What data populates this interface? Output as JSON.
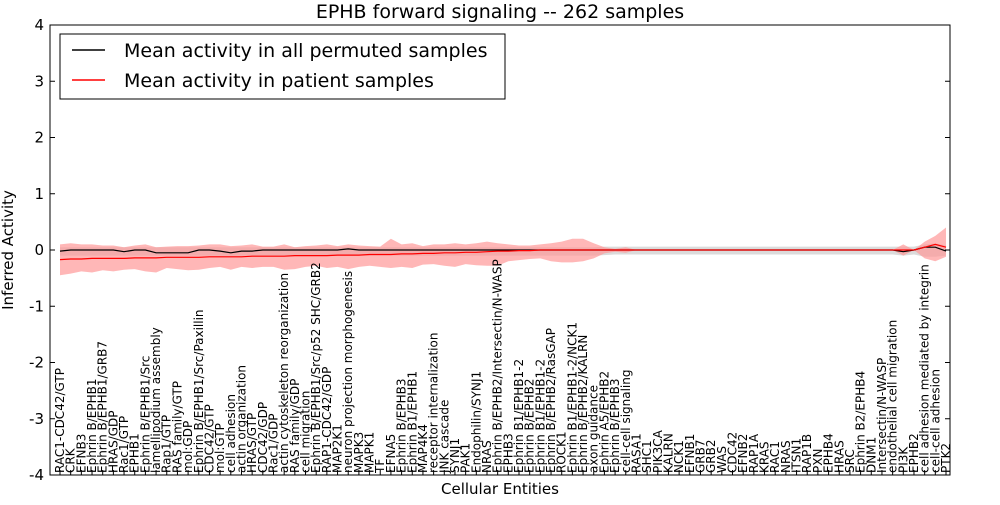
{
  "chart_data": {
    "type": "line",
    "title": "EPHB forward signaling -- 262 samples",
    "xlabel": "Cellular Entities",
    "ylabel": "Inferred Activity",
    "ylim": [
      -4,
      4
    ],
    "yticks": [
      4,
      3,
      2,
      1,
      0,
      -1,
      -2,
      -3,
      -4
    ],
    "legend_position": "top-left",
    "colors": {
      "permuted_line": "#000000",
      "patient_line": "#ff0000",
      "patient_band": "#ff9999",
      "permuted_band": "#cccccc"
    },
    "categories": [
      "RAC1-CDC42/GTP",
      "CRK",
      "EFNB3",
      "Ephrin B/EPHB1",
      "Ephrin B/EPHB1/GRB7",
      "HRAS/GDP",
      "Rac1/GTP",
      "EPHB1",
      "Ephrin B/EPHB1/Src",
      "lamellipodium assembly",
      "Rap1/GTP",
      "RAS family/GTP",
      "mol:GDP",
      "Ephrin B/EPHB1/Src/Paxillin",
      "CDC42/GTP",
      "mol:GTP",
      "cell adhesion",
      "actin organization",
      "HRAS/GTP",
      "CDC42/GDP",
      "Rac1/GDP",
      "actin cytoskeleton reorganization",
      "RAS family/GDP",
      "cell migration",
      "Ephrin B/EPHB1/Src/p52 SHC/GRB2",
      "RAP1-CDC42/GDP",
      "MAP2K1",
      "neuron projection morphogenesis",
      "MAPK3",
      "MAPK1",
      "TF",
      "EFNA5",
      "Ephrin B/EPHB3",
      "Ephrin B1/EPHB1",
      "MAP4K4",
      "receptor internalization",
      "JNK cascade",
      "SYNJ1",
      "PAK1",
      "Endophilin/SYNJ1",
      "NRAS",
      "Ephrin B/EPHB2/Intersectin/N-WASP",
      "EPHB3",
      "Ephrin B1/EPHB1-2",
      "Ephrin B/EPHB2",
      "Ephrin B1/EPHB1-2",
      "Ephrin B/EPHB2/RasGAP",
      "ROCK1",
      "Ephrin B1/EPHB1-2/NCK1",
      "Ephrin B/EPHB2/KALRN",
      "axon guidance",
      "Ephrin A5/EPHB2",
      "Ephrin B/EPHB3",
      "cell-cell signaling",
      "RASA1",
      "SHC1",
      "PIK3CA",
      "KALRN",
      "NCK1",
      "EFNB1",
      "GRB7",
      "GRB2",
      "WAS",
      "CDC42",
      "EFNB2",
      "RAP1A",
      "KRAS",
      "RAC1",
      "NRAS",
      "ITSN1",
      "RAP1B",
      "PXN",
      "EPHB4",
      "HRAS",
      "SRC",
      "Ephrin B2/EPHB4",
      "DNM1",
      "Intersectin/N-WASP",
      "endothelial cell migration",
      "PI3K",
      "EPHB2",
      "cell adhesion mediated by integrin",
      "cell-cell adhesion",
      "PTK2"
    ],
    "series": [
      {
        "name": "Mean activity in all permuted samples",
        "values": [
          -0.02,
          0.0,
          0.0,
          0.0,
          0.0,
          0.0,
          -0.03,
          0.0,
          0.0,
          -0.05,
          -0.05,
          -0.05,
          -0.05,
          0.0,
          0.0,
          -0.02,
          -0.05,
          -0.02,
          -0.02,
          0.0,
          0.0,
          0.0,
          0.0,
          0.0,
          0.0,
          0.0,
          0.0,
          0.02,
          0.0,
          0.0,
          0.0,
          0.0,
          0.0,
          0.0,
          0.0,
          0.0,
          0.0,
          0.0,
          0.0,
          0.0,
          0.0,
          0.0,
          0.0,
          0.0,
          0.0,
          0.0,
          0.0,
          0.0,
          0.0,
          0.0,
          0.0,
          0.0,
          0.0,
          0.0,
          0.0,
          0.0,
          0.0,
          0.0,
          0.0,
          0.0,
          0.0,
          0.0,
          0.0,
          0.0,
          0.0,
          0.0,
          0.0,
          0.0,
          0.0,
          0.0,
          0.0,
          0.0,
          0.0,
          0.0,
          0.0,
          0.0,
          0.0,
          0.0,
          0.0,
          -0.03,
          0.0,
          0.05,
          0.05,
          -0.02
        ]
      },
      {
        "name": "Mean activity in patient samples",
        "values": [
          -0.17,
          -0.16,
          -0.16,
          -0.15,
          -0.15,
          -0.15,
          -0.15,
          -0.14,
          -0.14,
          -0.14,
          -0.13,
          -0.13,
          -0.13,
          -0.13,
          -0.12,
          -0.12,
          -0.12,
          -0.12,
          -0.11,
          -0.11,
          -0.11,
          -0.11,
          -0.1,
          -0.1,
          -0.1,
          -0.1,
          -0.09,
          -0.09,
          -0.09,
          -0.08,
          -0.08,
          -0.08,
          -0.07,
          -0.07,
          -0.06,
          -0.06,
          -0.05,
          -0.05,
          -0.04,
          -0.04,
          -0.03,
          -0.02,
          -0.02,
          -0.01,
          -0.01,
          0.0,
          0.0,
          0.0,
          0.0,
          0.0,
          0.0,
          0.0,
          0.0,
          0.0,
          0.0,
          0.0,
          0.0,
          0.0,
          0.0,
          0.0,
          0.0,
          0.0,
          0.0,
          0.0,
          0.0,
          0.0,
          0.0,
          0.0,
          0.0,
          0.0,
          0.0,
          0.0,
          0.0,
          0.0,
          0.0,
          0.0,
          0.0,
          0.0,
          0.0,
          0.0,
          0.0,
          0.05,
          0.1,
          0.05
        ]
      }
    ],
    "patient_band": {
      "upper": [
        0.1,
        0.12,
        0.1,
        0.1,
        0.08,
        0.08,
        0.05,
        0.08,
        0.1,
        0.05,
        0.06,
        0.07,
        0.07,
        0.08,
        0.1,
        0.1,
        0.07,
        0.08,
        0.1,
        0.06,
        0.06,
        0.1,
        0.05,
        0.07,
        0.08,
        0.1,
        0.07,
        0.1,
        0.08,
        0.07,
        0.06,
        0.2,
        0.1,
        0.12,
        0.07,
        0.1,
        0.1,
        0.12,
        0.1,
        0.12,
        0.15,
        0.12,
        0.1,
        0.08,
        0.08,
        0.1,
        0.12,
        0.15,
        0.2,
        0.2,
        0.12,
        0.05,
        0.02,
        0.05,
        0.0,
        0.0,
        0.0,
        0.0,
        0.0,
        0.0,
        0.0,
        0.0,
        0.0,
        0.0,
        0.0,
        0.0,
        0.0,
        0.0,
        0.0,
        0.0,
        0.0,
        0.0,
        0.0,
        0.0,
        0.0,
        0.0,
        0.0,
        0.0,
        0.0,
        0.1,
        0.0,
        0.15,
        0.25,
        0.4
      ],
      "lower": [
        -0.45,
        -0.42,
        -0.38,
        -0.4,
        -0.36,
        -0.38,
        -0.35,
        -0.34,
        -0.38,
        -0.4,
        -0.32,
        -0.34,
        -0.36,
        -0.35,
        -0.32,
        -0.3,
        -0.35,
        -0.3,
        -0.32,
        -0.3,
        -0.3,
        -0.35,
        -0.34,
        -0.3,
        -0.28,
        -0.32,
        -0.3,
        -0.34,
        -0.3,
        -0.28,
        -0.3,
        -0.32,
        -0.3,
        -0.32,
        -0.26,
        -0.25,
        -0.28,
        -0.3,
        -0.25,
        -0.27,
        -0.28,
        -0.28,
        -0.2,
        -0.18,
        -0.16,
        -0.15,
        -0.2,
        -0.22,
        -0.22,
        -0.2,
        -0.15,
        -0.06,
        -0.03,
        -0.05,
        0.0,
        0.0,
        0.0,
        0.0,
        0.0,
        0.0,
        0.0,
        0.0,
        0.0,
        0.0,
        0.0,
        0.0,
        0.0,
        0.0,
        0.0,
        0.0,
        0.0,
        0.0,
        0.0,
        0.0,
        0.0,
        0.0,
        0.0,
        0.0,
        0.0,
        -0.1,
        0.0,
        -0.15,
        -0.2,
        -0.12
      ]
    },
    "permuted_band": {
      "upper": [
        0.05,
        0.05,
        0.05,
        0.05,
        0.05,
        0.05,
        0.05,
        0.05,
        0.05,
        0.05,
        0.05,
        0.05,
        0.05,
        0.05,
        0.05,
        0.05,
        0.05,
        0.05,
        0.05,
        0.05,
        0.05,
        0.05,
        0.05,
        0.05,
        0.05,
        0.05,
        0.05,
        0.05,
        0.05,
        0.05,
        0.05,
        0.05,
        0.05,
        0.05,
        0.05,
        0.05,
        0.05,
        0.05,
        0.05,
        0.05,
        0.05,
        0.05,
        0.05,
        0.05,
        0.05,
        0.05,
        0.05,
        0.05,
        0.05,
        0.05,
        0.05,
        0.06,
        0.06,
        0.06,
        0.06,
        0.06,
        0.06,
        0.06,
        0.06,
        0.06,
        0.06,
        0.06,
        0.06,
        0.06,
        0.06,
        0.06,
        0.06,
        0.06,
        0.06,
        0.06,
        0.06,
        0.06,
        0.06,
        0.06,
        0.06,
        0.06,
        0.06,
        0.06,
        0.06,
        0.06,
        0.06,
        0.1,
        0.12,
        0.08
      ],
      "lower": [
        -0.1,
        -0.1,
        -0.1,
        -0.1,
        -0.1,
        -0.1,
        -0.1,
        -0.1,
        -0.1,
        -0.1,
        -0.1,
        -0.1,
        -0.1,
        -0.1,
        -0.1,
        -0.1,
        -0.1,
        -0.1,
        -0.1,
        -0.1,
        -0.1,
        -0.1,
        -0.1,
        -0.1,
        -0.1,
        -0.1,
        -0.1,
        -0.1,
        -0.1,
        -0.1,
        -0.1,
        -0.1,
        -0.1,
        -0.1,
        -0.1,
        -0.1,
        -0.1,
        -0.1,
        -0.1,
        -0.1,
        -0.1,
        -0.1,
        -0.1,
        -0.1,
        -0.1,
        -0.1,
        -0.1,
        -0.1,
        -0.1,
        -0.1,
        -0.1,
        -0.09,
        -0.08,
        -0.08,
        -0.08,
        -0.08,
        -0.08,
        -0.08,
        -0.08,
        -0.08,
        -0.08,
        -0.08,
        -0.08,
        -0.08,
        -0.08,
        -0.08,
        -0.08,
        -0.08,
        -0.08,
        -0.08,
        -0.08,
        -0.08,
        -0.08,
        -0.08,
        -0.08,
        -0.08,
        -0.08,
        -0.08,
        -0.08,
        -0.1,
        -0.08,
        -0.12,
        -0.12,
        -0.1
      ]
    }
  }
}
